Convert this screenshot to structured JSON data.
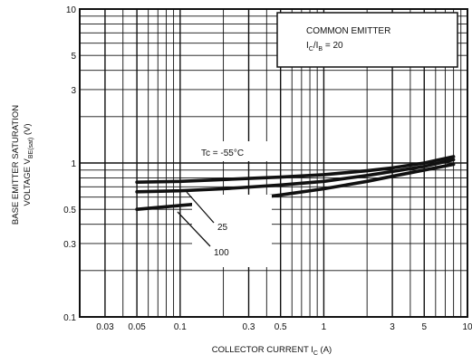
{
  "chart_data": {
    "type": "line",
    "scale": {
      "x": "log",
      "y": "log"
    },
    "xlim": [
      0.02,
      10
    ],
    "ylim": [
      0.1,
      10
    ],
    "x_ticks": [
      {
        "v": 0.03,
        "label": "0.03"
      },
      {
        "v": 0.05,
        "label": "0.05"
      },
      {
        "v": 0.1,
        "label": "0.1"
      },
      {
        "v": 0.3,
        "label": "0.3"
      },
      {
        "v": 0.5,
        "label": "0.5"
      },
      {
        "v": 1,
        "label": "1"
      },
      {
        "v": 3,
        "label": "3"
      },
      {
        "v": 5,
        "label": "5"
      },
      {
        "v": 10,
        "label": "10"
      }
    ],
    "y_ticks": [
      {
        "v": 0.1,
        "label": "0.1"
      },
      {
        "v": 0.3,
        "label": "0.3"
      },
      {
        "v": 0.5,
        "label": "0.5"
      },
      {
        "v": 1,
        "label": "1"
      },
      {
        "v": 3,
        "label": "3"
      },
      {
        "v": 5,
        "label": "5"
      },
      {
        "v": 10,
        "label": "10"
      }
    ],
    "xlabel": {
      "text": "COLLECTOR CURRENT I",
      "sub": "C",
      "suffix": " (A)"
    },
    "ylabel": {
      "line1": "BASE EMITTER SATURATION",
      "line2_text": "VOLTAGE V",
      "line2_sub": "BE(sat)",
      "line2_suffix": " (V)"
    },
    "conditions": {
      "line1": "COMMON EMITTER",
      "line2_a": "I",
      "line2_sub_a": "C",
      "line2_b": "/I",
      "line2_sub_b": "B",
      "line2_c": " = 20"
    },
    "grid": true,
    "series": [
      {
        "name": "Tc = -55°C",
        "x": [
          0.05,
          0.1,
          0.2,
          0.5,
          1,
          2,
          3,
          5,
          8
        ],
        "y": [
          0.75,
          0.76,
          0.78,
          0.81,
          0.84,
          0.89,
          0.93,
          1.0,
          1.1
        ]
      },
      {
        "name": "25",
        "x": [
          0.05,
          0.1,
          0.2,
          0.5,
          1,
          2,
          3,
          5,
          8
        ],
        "y": [
          0.65,
          0.66,
          0.68,
          0.72,
          0.76,
          0.83,
          0.88,
          0.95,
          1.05
        ]
      },
      {
        "name": "100",
        "x": [
          0.05,
          0.1,
          0.2,
          0.5,
          1,
          2,
          3,
          5,
          8
        ],
        "y": [
          0.5,
          0.53,
          0.56,
          0.62,
          0.68,
          0.76,
          0.82,
          0.9,
          0.98
        ]
      }
    ],
    "series_labels": {
      "tc": {
        "prefix": "Tc = ",
        "value": "-55°C"
      },
      "s25": "25",
      "s100": "100"
    }
  }
}
